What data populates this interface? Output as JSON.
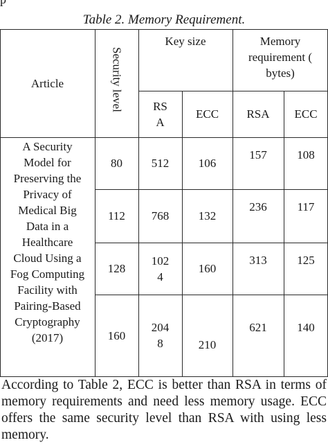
{
  "top_fragment": "p",
  "caption": "Table 2. Memory Requirement.",
  "table": {
    "header": {
      "article": "Article",
      "security_level": "Security level",
      "key_size": "Key size",
      "memory_requirement": "Memory requirement ( bytes)",
      "key_rsa": "RS A",
      "key_ecc": "ECC",
      "mem_rsa": "RSA",
      "mem_ecc": "ECC"
    },
    "article_text": "A Security Model for Preserving the Privacy of Medical Big Data in a Healthcare Cloud Using a Fog Computing Facility with Pairing-Based Cryptography (2017)",
    "rows": [
      {
        "security": "80",
        "key_rsa": "512",
        "key_ecc": "106",
        "mem_rsa": "157",
        "mem_ecc": "108"
      },
      {
        "security": "112",
        "key_rsa": "768",
        "key_ecc": "132",
        "mem_rsa": "236",
        "mem_ecc": "117"
      },
      {
        "security": "128",
        "key_rsa": "102 4",
        "key_ecc": "160",
        "mem_rsa": "313",
        "mem_ecc": "125"
      },
      {
        "security": "160",
        "key_rsa": "204 8",
        "key_ecc": "210",
        "mem_rsa": "621",
        "mem_ecc": "140"
      }
    ]
  },
  "paragraph": "According to Table 2, ECC is better than RSA in terms of memory requirements and need less memory usage. ECC offers the same security level than RSA with using less memory."
}
